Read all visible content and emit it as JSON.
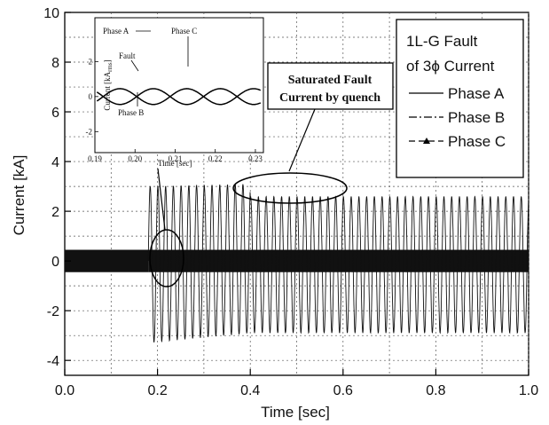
{
  "chart_data": {
    "type": "line",
    "xlabel": "Time [sec]",
    "ylabel": "Current [kA]",
    "xlim": [
      0.0,
      1.0
    ],
    "ylim": [
      -4.6,
      10
    ],
    "xticks": [
      "0.0",
      "0.2",
      "0.4",
      "0.6",
      "0.8",
      "1.0"
    ],
    "yticks": [
      "-4",
      "-2",
      "0",
      "2",
      "4",
      "6",
      "8",
      "10"
    ],
    "grid": true,
    "legend": {
      "placement": "top-right",
      "title_line1": "1L-G Fault",
      "title_line2": "of 3ϕ Current",
      "entries": [
        "Phase A",
        "Phase B",
        "Phase C"
      ]
    },
    "annotations": {
      "callout_line1": "Saturated Fault",
      "callout_line2": "Current by quench"
    },
    "signal": {
      "pre_fault_amplitude": 0.45,
      "fault_time": 0.18,
      "fault_peak_positive": 3.0,
      "fault_peak_negative": -3.3,
      "saturated_peak_positive": 2.6,
      "saturated_peak_negative": -2.9,
      "frequency_hz": 60
    },
    "inset": {
      "xlabel": "Time [sec]",
      "ylabel": "Current [kA",
      "ylabel_sub": "rms",
      "ylabel_end": "]",
      "xlim": [
        0.19,
        0.232
      ],
      "ylim": [
        -3.2,
        4.5
      ],
      "xticks": [
        "0.19",
        "0.20",
        "0.21",
        "0.22",
        "0.23"
      ],
      "yticks": [
        "-2",
        "0",
        "2"
      ],
      "labels": {
        "phase_a": "Phase A",
        "phase_b": "Phase B",
        "phase_c": "Phase C",
        "fault": "Fault"
      },
      "amplitude": 0.45
    }
  }
}
